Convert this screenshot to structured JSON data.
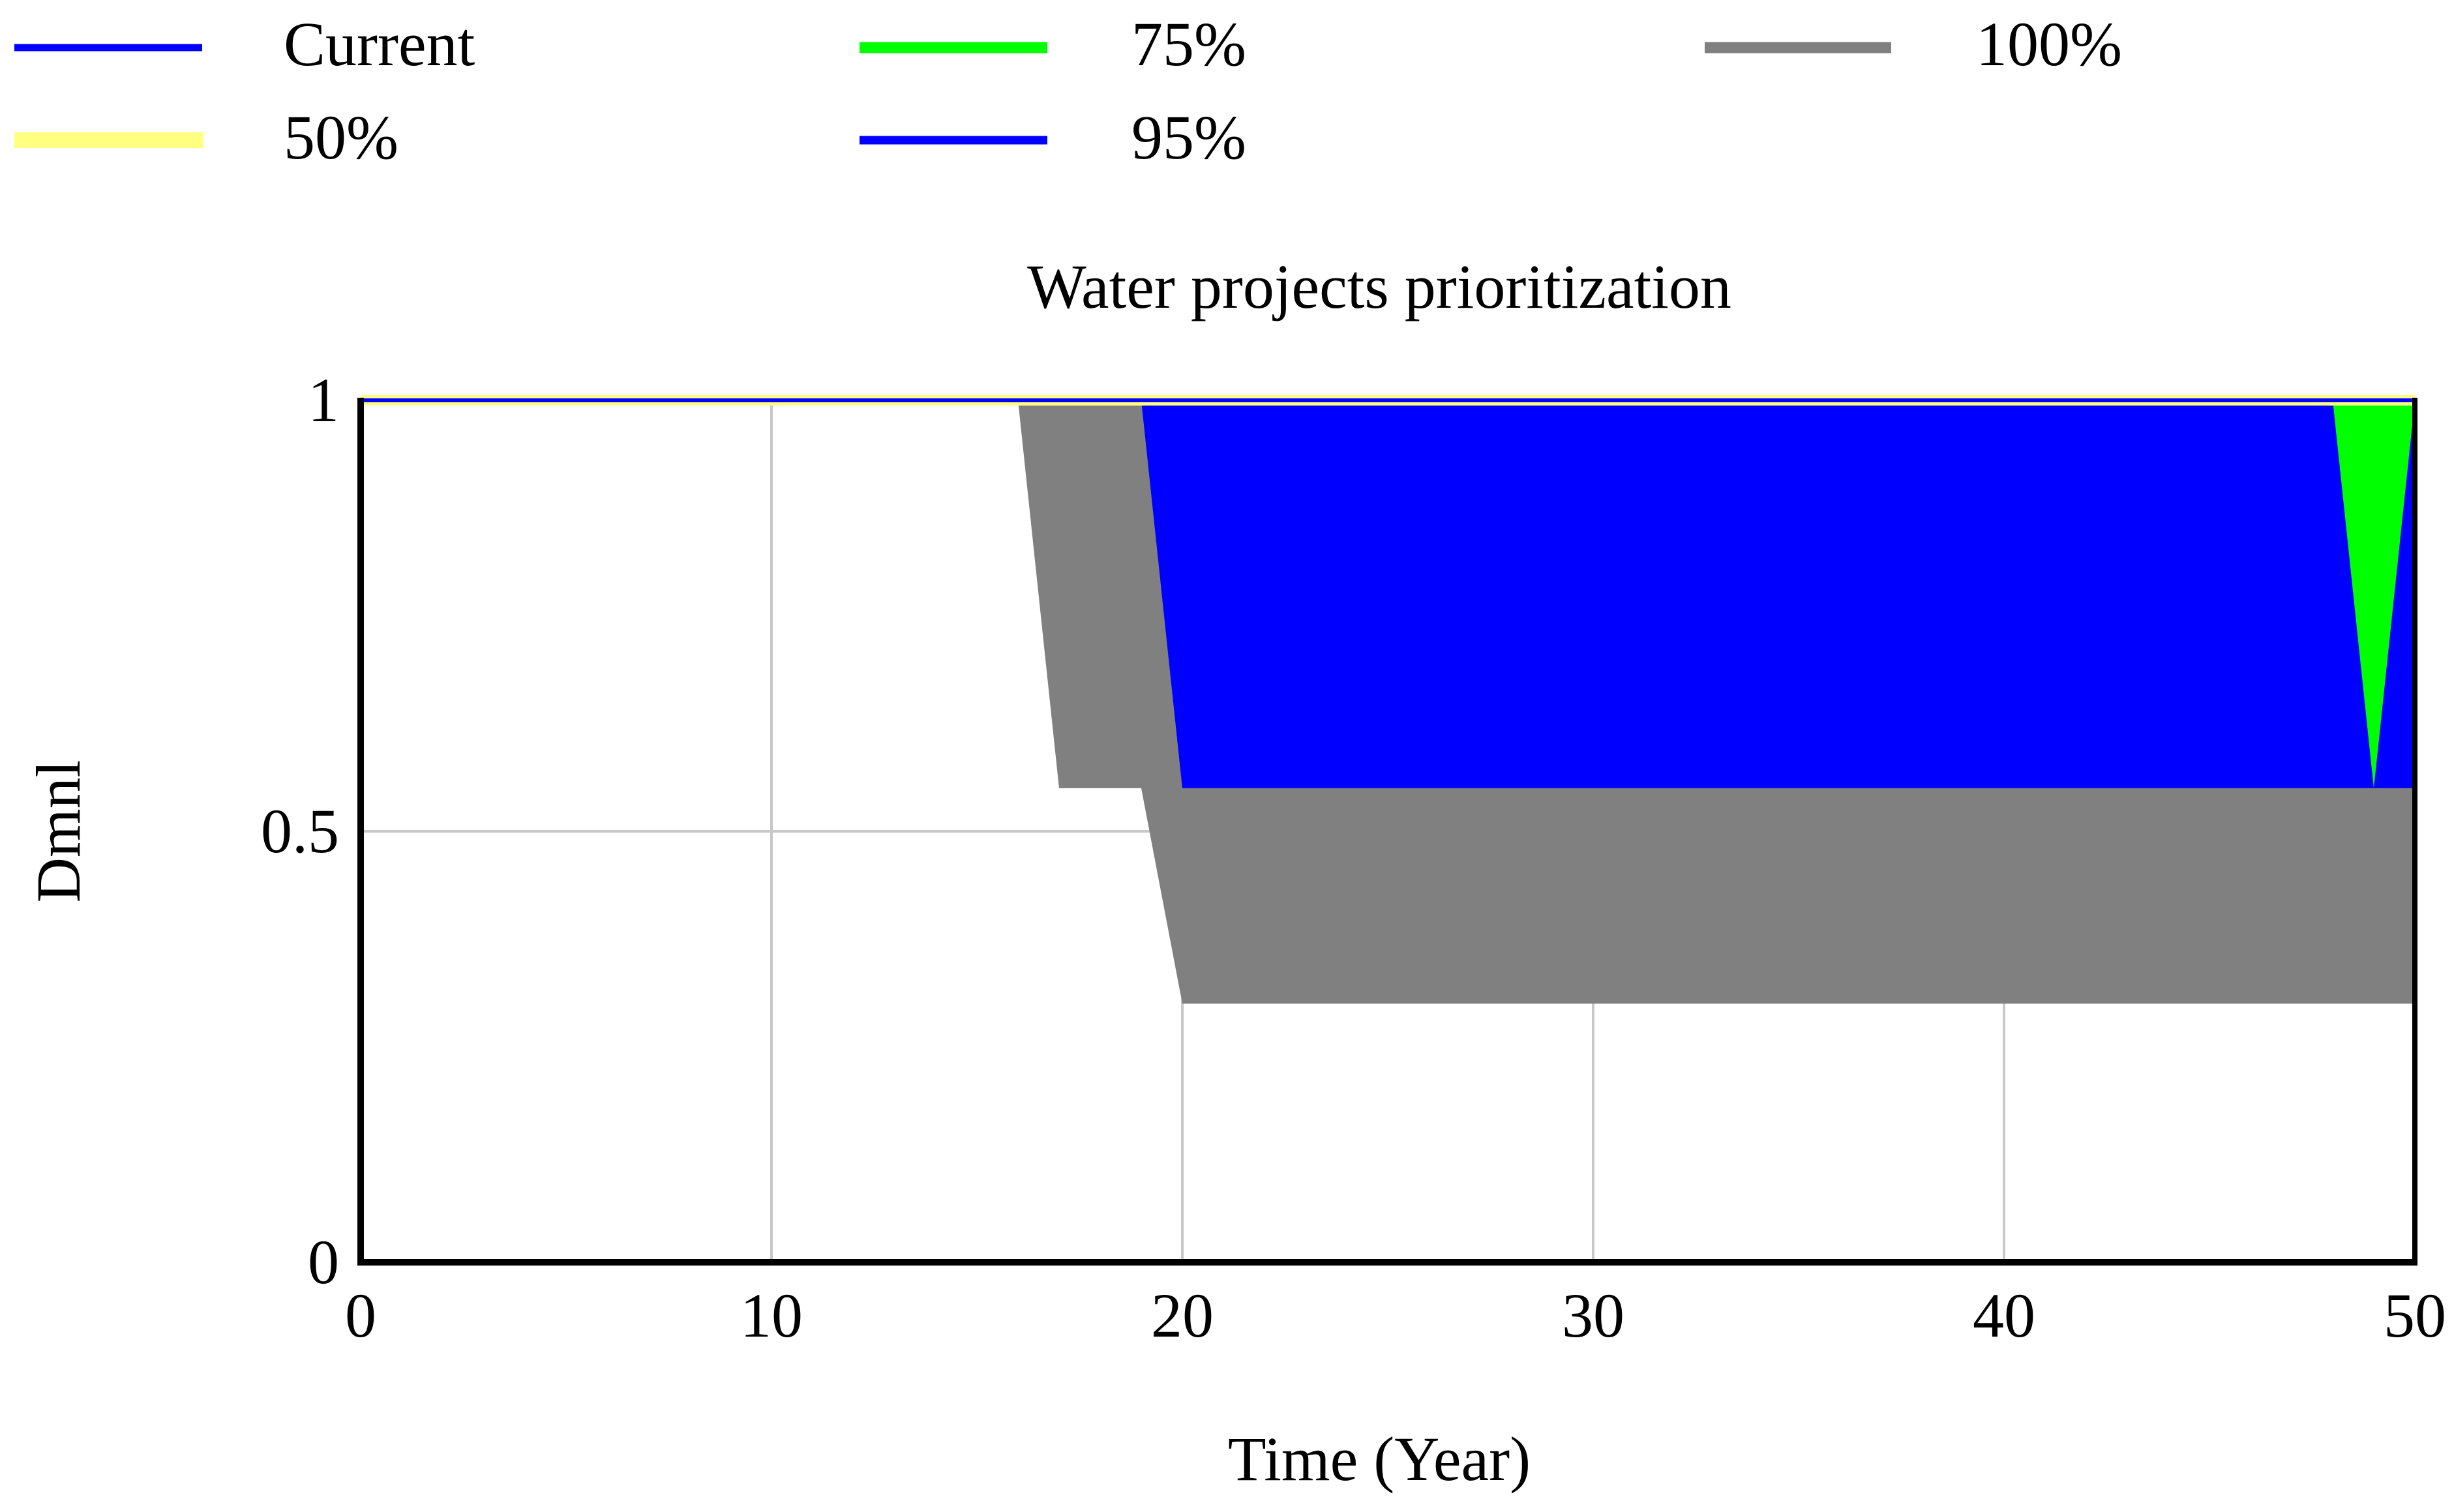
{
  "chart_data": {
    "type": "area",
    "title": "Water projects prioritization",
    "xlabel": "Time (Year)",
    "ylabel": "Dmnl",
    "xlim": [
      0,
      50
    ],
    "ylim": [
      0,
      1
    ],
    "x_ticks": [
      "0",
      "10",
      "20",
      "30",
      "40",
      "50"
    ],
    "y_ticks": [
      "0",
      "0.5",
      "1"
    ],
    "x_tick_values": [
      0,
      10,
      20,
      30,
      40,
      50
    ],
    "y_tick_values": [
      0,
      0.5,
      1
    ],
    "grid": true,
    "legend_position": "top",
    "legend": [
      {
        "label": "Current",
        "color": "#0000FF",
        "style": "line"
      },
      {
        "label": "75%",
        "color": "#00FF00",
        "style": "band"
      },
      {
        "label": "100%",
        "color": "#808080",
        "style": "band"
      },
      {
        "label": "50%",
        "color": "#FFFF80",
        "style": "band"
      },
      {
        "label": "95%",
        "color": "#0000FF",
        "style": "band"
      }
    ],
    "bands": [
      {
        "name": "100%",
        "color": "#808080",
        "upper": [
          [
            0,
            1
          ],
          [
            16,
            1
          ],
          [
            50,
            1
          ]
        ],
        "lower": [
          [
            0,
            1
          ],
          [
            16,
            1
          ],
          [
            17,
            0.55
          ],
          [
            19,
            0.55
          ],
          [
            20,
            0.3
          ],
          [
            50,
            0.3
          ]
        ]
      },
      {
        "name": "95%",
        "color": "#0000FF",
        "upper": [
          [
            0,
            1
          ],
          [
            19,
            1
          ],
          [
            50,
            1
          ]
        ],
        "lower": [
          [
            0,
            1
          ],
          [
            19,
            1
          ],
          [
            20,
            0.55
          ],
          [
            50,
            0.55
          ]
        ]
      },
      {
        "name": "75%",
        "color": "#00FF00",
        "upper": [
          [
            48,
            1
          ],
          [
            50,
            1
          ]
        ],
        "lower": [
          [
            48,
            1
          ],
          [
            49,
            0.55
          ],
          [
            50,
            1
          ]
        ]
      },
      {
        "name": "50%",
        "color": "#FFFF80",
        "upper": [
          [
            0,
            1
          ],
          [
            50,
            1
          ]
        ],
        "lower": [
          [
            0,
            1
          ],
          [
            50,
            1
          ]
        ]
      }
    ],
    "series": [
      {
        "name": "Current",
        "color": "#0000FF",
        "x": [
          0,
          38,
          50
        ],
        "y": [
          1,
          1,
          1
        ]
      }
    ]
  }
}
